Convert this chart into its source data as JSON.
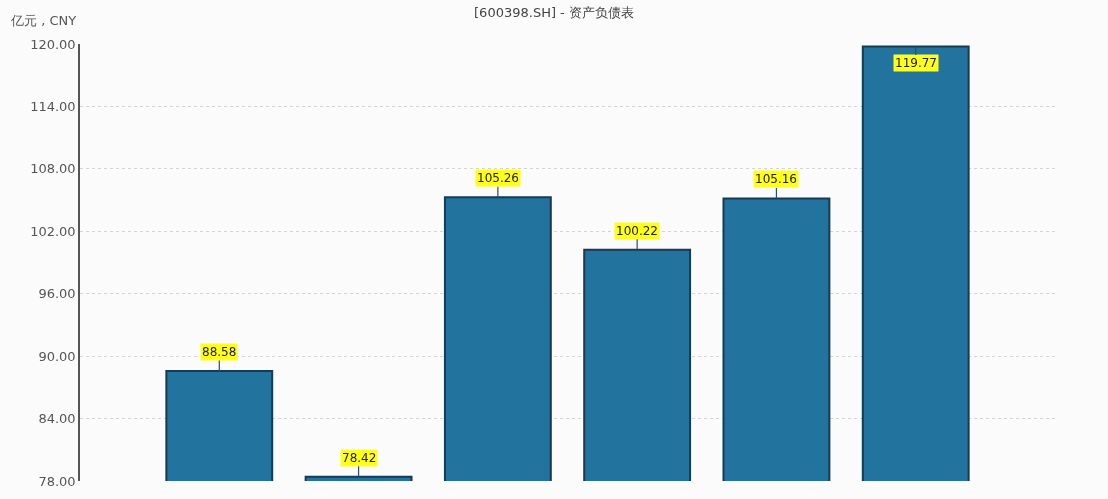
{
  "chart_data": {
    "type": "bar",
    "title": "[600398.SH] - 资产负债表",
    "ylabel": "亿元 , CNY",
    "categories": [
      null,
      null,
      null,
      null,
      null,
      null
    ],
    "values": [
      88.58,
      78.42,
      105.26,
      100.22,
      105.16,
      119.77
    ],
    "color": "#22749f",
    "ylim": [
      78,
      120
    ],
    "yticks": [
      {
        "value": 78,
        "label": "78.00"
      },
      {
        "value": 84,
        "label": "84.00"
      },
      {
        "value": 90,
        "label": "90.00"
      },
      {
        "value": 96,
        "label": "96.00"
      },
      {
        "value": 102,
        "label": "102.00"
      },
      {
        "value": 108,
        "label": "108.00"
      },
      {
        "value": 114,
        "label": "114.00"
      },
      {
        "value": 120,
        "label": "120.00"
      }
    ],
    "grid": "y",
    "data_labels": true,
    "tick_labels": "y"
  }
}
